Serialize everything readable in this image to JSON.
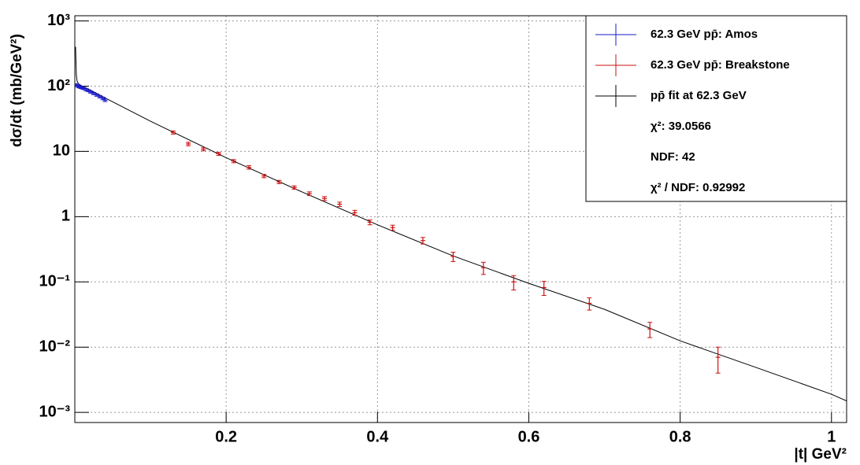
{
  "chart_data": {
    "type": "scatter",
    "x_label": "|t| GeV²",
    "y_label": "dσ/dt (mb/GeV²)",
    "xlim": [
      0,
      1.02
    ],
    "xticks": [
      0.2,
      0.4,
      0.6,
      0.8,
      1
    ],
    "ylim": [
      0.0007,
      1200
    ],
    "log_y": true,
    "grid": true,
    "yticks": [
      {
        "value": 0.001,
        "label": "10⁻³"
      },
      {
        "value": 0.01,
        "label": "10⁻²"
      },
      {
        "value": 0.1,
        "label": "10⁻¹"
      },
      1,
      10,
      {
        "value": 100,
        "label": "10²"
      },
      {
        "value": 1000,
        "label": "10³"
      }
    ],
    "legend_position": "upper right",
    "series": [
      {
        "name": "62.3 GeV pp̄: Amos",
        "color": "#1a1acc",
        "style": "points",
        "x": [
          0.002,
          0.004,
          0.006,
          0.008,
          0.01,
          0.012,
          0.015,
          0.018,
          0.021,
          0.025,
          0.029,
          0.033,
          0.037,
          0.04
        ],
        "values": [
          105,
          100,
          98,
          96,
          94,
          92,
          88,
          85,
          81,
          77,
          73,
          69,
          65,
          61
        ],
        "errors": [
          4,
          4,
          4,
          4,
          3.5,
          3.5,
          3.5,
          3,
          3,
          3,
          3,
          3,
          3,
          3
        ]
      },
      {
        "name": "62.3 GeV pp̄: Breakstone",
        "color": "#cc1111",
        "style": "points",
        "x": [
          0.13,
          0.15,
          0.17,
          0.19,
          0.21,
          0.23,
          0.25,
          0.27,
          0.29,
          0.31,
          0.33,
          0.35,
          0.37,
          0.39,
          0.42,
          0.46,
          0.5,
          0.54,
          0.58,
          0.62,
          0.68,
          0.76,
          0.85
        ],
        "values": [
          19.5,
          13,
          10.8,
          9.2,
          7.1,
          5.7,
          4.2,
          3.4,
          2.8,
          2.25,
          1.9,
          1.55,
          1.15,
          0.82,
          0.68,
          0.43,
          0.245,
          0.165,
          0.1,
          0.082,
          0.047,
          0.019,
          0.007
        ],
        "errors": [
          1.1,
          0.8,
          0.6,
          0.5,
          0.4,
          0.35,
          0.25,
          0.2,
          0.17,
          0.15,
          0.13,
          0.12,
          0.1,
          0.07,
          0.06,
          0.05,
          0.04,
          0.035,
          0.025,
          0.02,
          0.01,
          0.005,
          0.003
        ]
      },
      {
        "name": "pp̄ fit at 62.3 GeV",
        "color": "#000000",
        "style": "line",
        "x": [
          0.001,
          0.002,
          0.003,
          0.005,
          0.01,
          0.02,
          0.04,
          0.1,
          0.2,
          0.3,
          0.4,
          0.5,
          0.6,
          0.7,
          0.8,
          0.9,
          1.0,
          1.02
        ],
        "values": [
          400,
          150,
          120,
          108,
          100,
          88,
          66,
          29,
          8.0,
          2.4,
          0.75,
          0.25,
          0.095,
          0.038,
          0.0125,
          0.0049,
          0.0019,
          0.0015
        ]
      }
    ],
    "legend_notes": [
      "χ²: 39.0566",
      "NDF: 42",
      "χ² / NDF: 0.92992"
    ]
  }
}
